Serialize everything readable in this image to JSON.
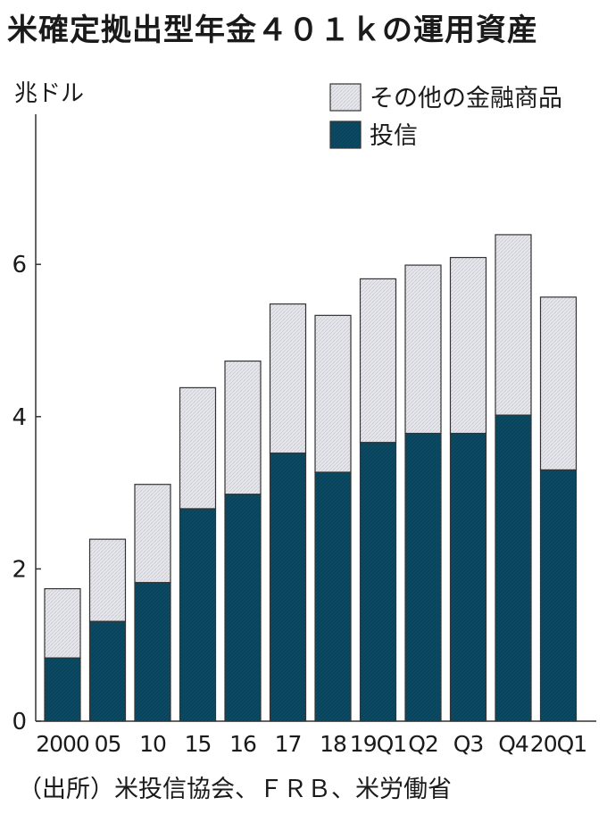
{
  "chart_data": {
    "type": "bar",
    "stacked": true,
    "title": "米確定拠出型年金４０１ｋの運用資産",
    "ylabel": "兆ドル",
    "xlabel": "",
    "ylim": [
      0,
      8
    ],
    "yticks": [
      0,
      2,
      4,
      6
    ],
    "grid": false,
    "legend_position": "top-right",
    "categories": [
      "2000",
      "05",
      "10",
      "15",
      "16",
      "17",
      "18",
      "19Q1",
      "Q2",
      "Q3",
      "Q4",
      "20Q1"
    ],
    "series": [
      {
        "name": "投信",
        "color": "#0c4a63",
        "values": [
          0.83,
          1.31,
          1.82,
          2.79,
          2.98,
          3.52,
          3.27,
          3.66,
          3.78,
          3.78,
          4.02,
          3.3
        ]
      },
      {
        "name": "その他の金融商品",
        "color": "#e6e6ec",
        "values": [
          0.91,
          1.08,
          1.29,
          1.59,
          1.75,
          1.96,
          2.06,
          2.15,
          2.21,
          2.31,
          2.37,
          2.27
        ]
      }
    ],
    "source": "（出所）米投信協会、ＦＲＢ、米労働省"
  }
}
